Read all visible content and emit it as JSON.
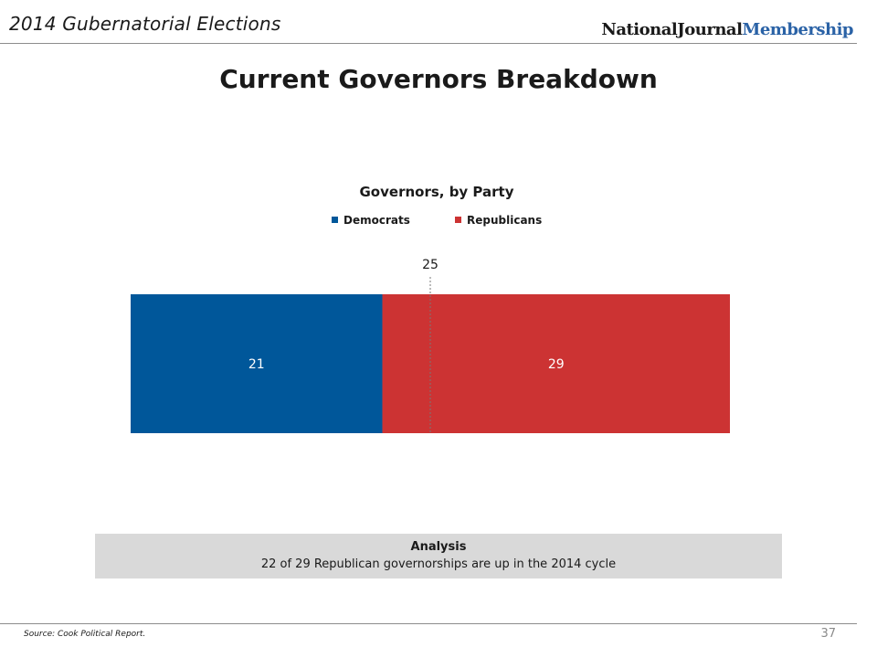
{
  "header": {
    "title": "2014 Gubernatorial Elections",
    "brand_main": "NationalJournal",
    "brand_accent": "Membership"
  },
  "page_title": "Current Governors Breakdown",
  "chart_data": {
    "type": "bar",
    "orientation": "horizontal",
    "stacked": true,
    "title": "Governors, by Party",
    "categories": [
      ""
    ],
    "series": [
      {
        "name": "Democrats",
        "values": [
          21
        ],
        "color": "#00579a"
      },
      {
        "name": "Republicans",
        "values": [
          29
        ],
        "color": "#cc3333"
      }
    ],
    "xlim": [
      0,
      50
    ],
    "reference_line": {
      "value": 25,
      "label": "25"
    },
    "legend_position": "top",
    "grid": false
  },
  "analysis": {
    "heading": "Analysis",
    "text": "22 of 29 Republican governorships are up in the 2014 cycle"
  },
  "footer": {
    "source": "Source: Cook Political Report.",
    "page_number": "37"
  }
}
